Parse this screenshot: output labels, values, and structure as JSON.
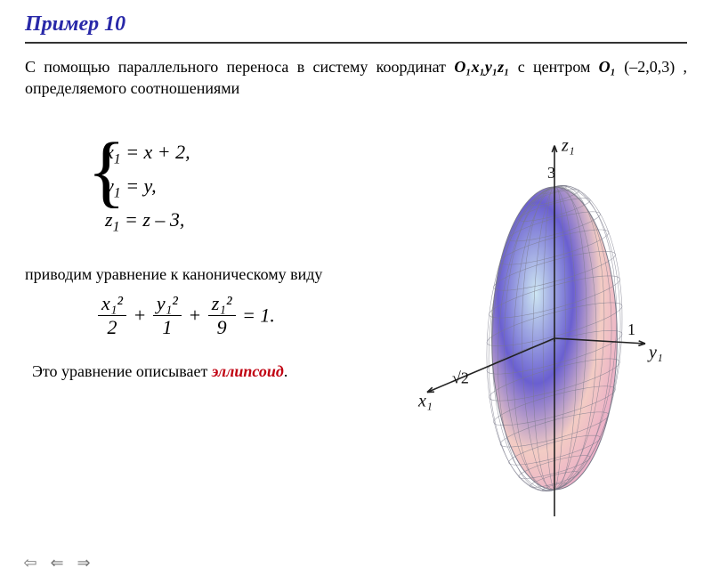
{
  "title": "Пример 10",
  "intro": {
    "pre": "С помощью параллельного переноса в систему координат ",
    "coord_frame": "O₁x₁y₁z₁",
    "mid": " с центром ",
    "center_label": "O₁",
    "center_coords": " (–2,0,3)",
    "post": ", определяемого соотношениями"
  },
  "equations": {
    "row1_lhs": "x",
    "row1_sub": "1",
    "row1_rhs": " = x + 2,",
    "row2_lhs": "y",
    "row2_sub": "1",
    "row2_rhs": " = y,",
    "row3_lhs": "z",
    "row3_sub": "1",
    "row3_rhs": " = z – 3,"
  },
  "canon_label": "приводим уравнение к каноническому виду",
  "canon": {
    "n1": "x₁²",
    "d1": "2",
    "n2": "y₁²",
    "d2": "1",
    "n3": "z₁²",
    "d3": "9",
    "eq": " = 1."
  },
  "final": {
    "pre": "Это уравнение описывает ",
    "kw": "эллипсоид",
    "post": "."
  },
  "figure": {
    "semi_axes": {
      "a": 1.4142,
      "b": 1.0,
      "c": 3.0
    },
    "axis_labels": {
      "x": "x₁",
      "y": "y₁",
      "z": "z₁"
    },
    "tick_labels": {
      "z_top": "3",
      "y_right": "1",
      "x_left": "√2"
    },
    "colors": {
      "grad_top": "#cde6f2",
      "grad_left": "#6a5fd0",
      "grad_right": "#f3ccc4",
      "grad_bottom": "#e9a8c8",
      "wire": "#7a7a8a",
      "axis": "#222222",
      "label": "#111111"
    },
    "wire_count": {
      "lat": 17,
      "lon": 19
    }
  },
  "nav": {
    "home": "⇦",
    "prev": "⇐",
    "next": "⇒"
  }
}
